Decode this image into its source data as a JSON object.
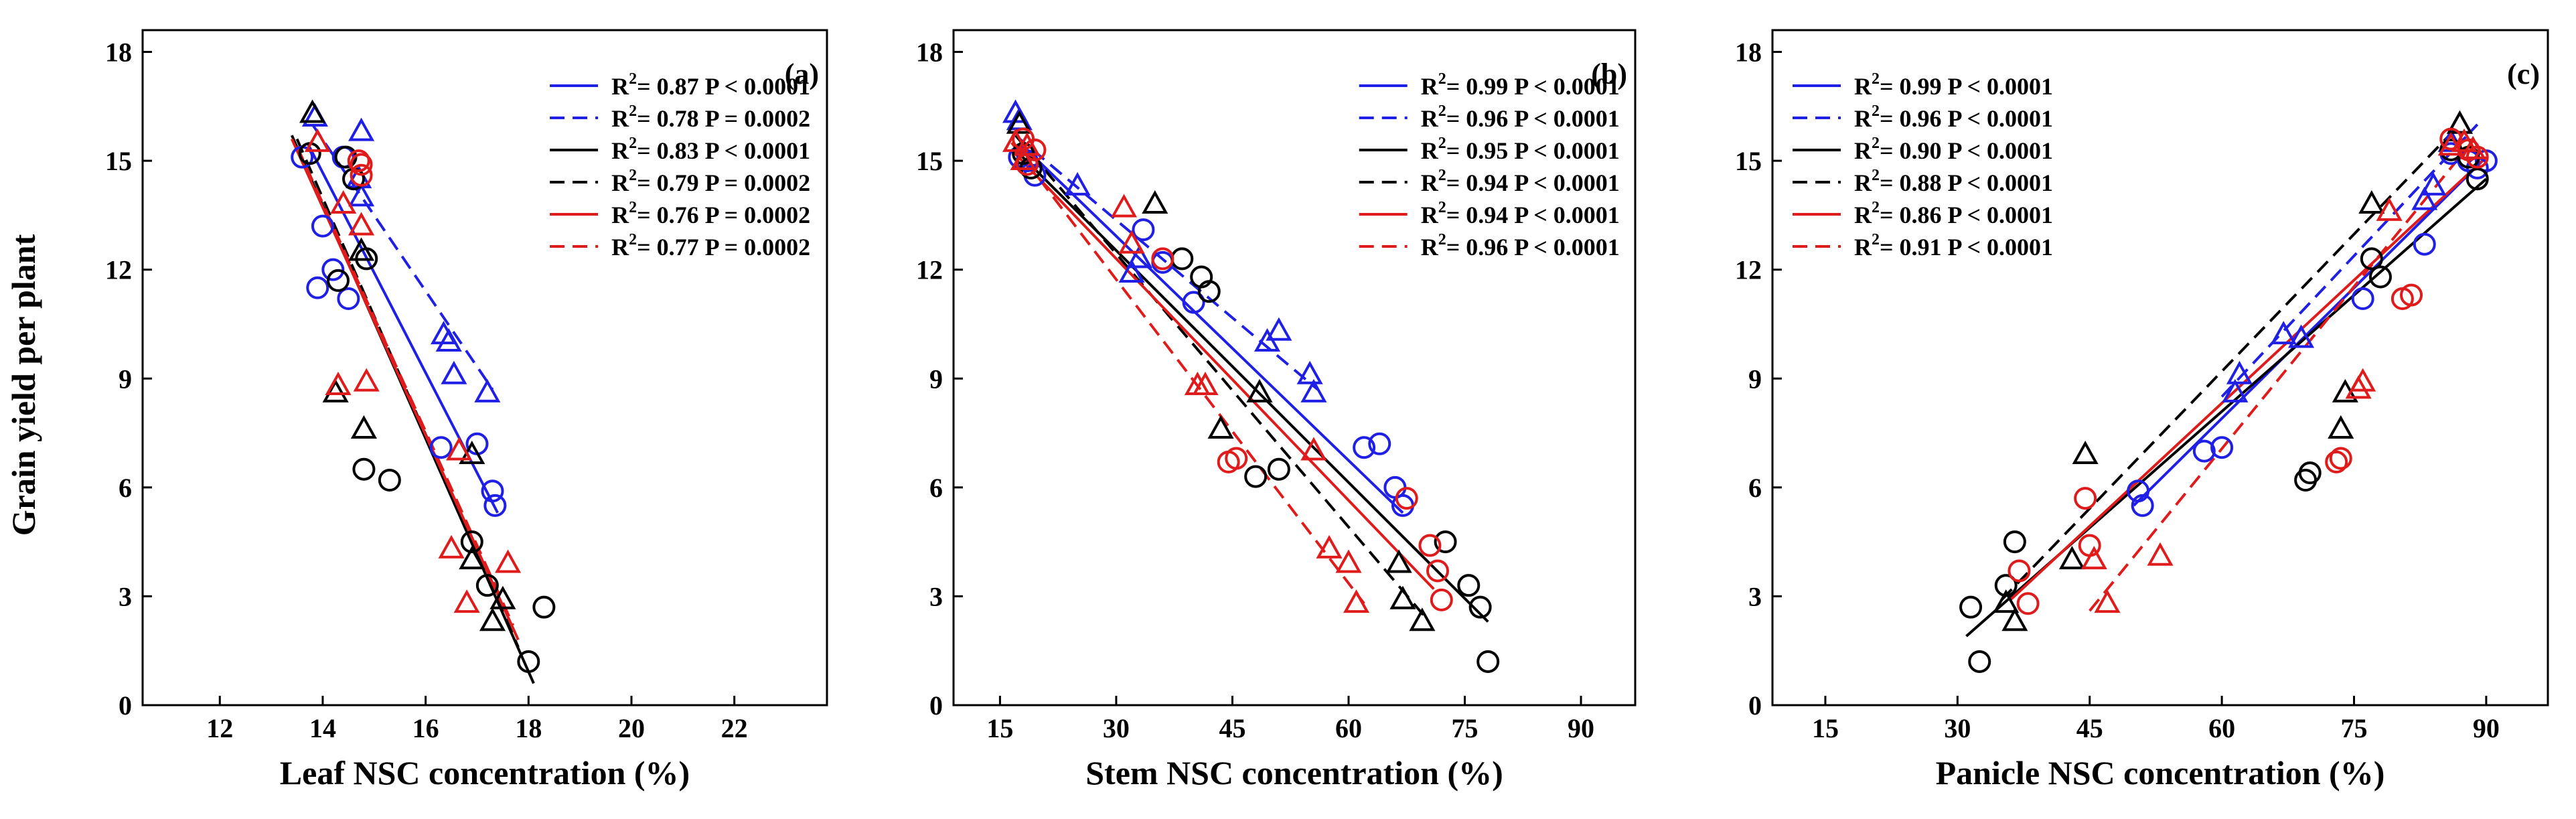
{
  "figure": {
    "ylabel": "Grain yield per plant",
    "colors": {
      "blue": "#1f1fe6",
      "black": "#000000",
      "red": "#e01b1b"
    }
  },
  "chart_data": [
    {
      "type": "scatter",
      "panel_label": "(a)",
      "xlabel": "Leaf NSC concentration (%)",
      "ylabel": "Grain yield per plant",
      "xlim": [
        10.5,
        23.8
      ],
      "ylim": [
        0,
        18.6
      ],
      "xticks": [
        12,
        14,
        16,
        18,
        20,
        22
      ],
      "yticks": [
        0,
        3,
        6,
        9,
        12,
        15,
        18
      ],
      "legend_position": "top-right",
      "series": [
        {
          "color": "blue",
          "marker": "circle",
          "dash": false,
          "legend_r2": "= 0.87",
          "legend_p": "P < 0.0001",
          "fit": [
            [
              13.7,
              15.5
            ],
            [
              17.4,
              5.3
            ]
          ],
          "points": [
            [
              13.6,
              15.1
            ],
            [
              14.0,
              13.2
            ],
            [
              13.9,
              11.5
            ],
            [
              14.5,
              11.2
            ],
            [
              14.4,
              15.1
            ],
            [
              14.2,
              12.0
            ],
            [
              16.3,
              7.1
            ],
            [
              17.0,
              7.2
            ],
            [
              17.3,
              5.9
            ],
            [
              17.35,
              5.5
            ]
          ]
        },
        {
          "color": "blue",
          "marker": "triangle",
          "dash": true,
          "legend_r2": "= 0.78",
          "legend_p": "P = 0.0002",
          "fit": [
            [
              13.8,
              16.0
            ],
            [
              17.3,
              8.7
            ]
          ],
          "points": [
            [
              13.85,
              16.2
            ],
            [
              14.75,
              15.8
            ],
            [
              14.7,
              14.5
            ],
            [
              14.75,
              14.0
            ],
            [
              16.35,
              10.2
            ],
            [
              16.45,
              10.0
            ],
            [
              16.55,
              9.1
            ],
            [
              17.2,
              8.6
            ]
          ]
        },
        {
          "color": "black",
          "marker": "circle",
          "dash": false,
          "legend_r2": "= 0.83",
          "legend_p": "P < 0.0001",
          "fit": [
            [
              13.4,
              15.7
            ],
            [
              18.1,
              0.6
            ]
          ],
          "points": [
            [
              13.75,
              15.2
            ],
            [
              14.45,
              15.1
            ],
            [
              14.6,
              14.5
            ],
            [
              14.85,
              12.3
            ],
            [
              14.3,
              11.7
            ],
            [
              14.8,
              6.5
            ],
            [
              15.3,
              6.2
            ],
            [
              16.9,
              4.5
            ],
            [
              17.2,
              3.3
            ],
            [
              18.3,
              2.7
            ],
            [
              18.0,
              1.2
            ]
          ]
        },
        {
          "color": "black",
          "marker": "triangle",
          "dash": true,
          "legend_r2": "= 0.79",
          "legend_p": "P = 0.0002",
          "fit": [
            [
              13.5,
              15.6
            ],
            [
              17.8,
              1.6
            ]
          ],
          "points": [
            [
              13.8,
              16.3
            ],
            [
              14.75,
              12.5
            ],
            [
              14.25,
              8.6
            ],
            [
              14.8,
              7.6
            ],
            [
              16.9,
              6.9
            ],
            [
              16.9,
              4.0
            ],
            [
              17.3,
              2.3
            ],
            [
              17.5,
              2.9
            ]
          ]
        },
        {
          "color": "red",
          "marker": "circle",
          "dash": false,
          "legend_r2": "= 0.76",
          "legend_p": "P = 0.0002",
          "fit": [
            [
              13.4,
              15.6
            ],
            [
              17.8,
              1.8
            ]
          ],
          "points": [
            [
              14.7,
              15.0
            ],
            [
              14.75,
              14.6
            ],
            [
              14.75,
              14.9
            ]
          ]
        },
        {
          "color": "red",
          "marker": "triangle",
          "dash": true,
          "legend_r2": "= 0.77",
          "legend_p": "P = 0.0002",
          "fit": [
            [
              13.5,
              15.4
            ],
            [
              17.7,
              2.2
            ]
          ],
          "points": [
            [
              13.9,
              15.5
            ],
            [
              14.4,
              13.8
            ],
            [
              14.75,
              13.2
            ],
            [
              14.3,
              8.8
            ],
            [
              14.85,
              8.9
            ],
            [
              16.5,
              4.3
            ],
            [
              16.65,
              7.0
            ],
            [
              16.8,
              2.8
            ],
            [
              17.6,
              3.9
            ]
          ]
        }
      ]
    },
    {
      "type": "scatter",
      "panel_label": "(b)",
      "xlabel": "Stem NSC concentration (%)",
      "ylabel": "",
      "xlim": [
        9,
        97
      ],
      "ylim": [
        0,
        18.6
      ],
      "xticks": [
        15,
        30,
        45,
        60,
        75,
        90
      ],
      "yticks": [
        0,
        3,
        6,
        9,
        12,
        15,
        18
      ],
      "legend_position": "top-right",
      "series": [
        {
          "color": "blue",
          "marker": "circle",
          "dash": false,
          "legend_r2": "= 0.99",
          "legend_p": "P < 0.0001",
          "fit": [
            [
              17.5,
              15.5
            ],
            [
              67,
              5.3
            ]
          ],
          "points": [
            [
              17.5,
              15.1
            ],
            [
              18.5,
              15.0
            ],
            [
              19.5,
              14.6
            ],
            [
              33.5,
              13.1
            ],
            [
              36,
              12.2
            ],
            [
              40,
              11.1
            ],
            [
              62,
              7.1
            ],
            [
              64,
              7.2
            ],
            [
              66,
              6.0
            ],
            [
              67,
              5.5
            ]
          ]
        },
        {
          "color": "blue",
          "marker": "triangle",
          "dash": true,
          "legend_r2": "= 0.96",
          "legend_p": "P < 0.0001",
          "fit": [
            [
              17,
              15.7
            ],
            [
              56,
              8.7
            ]
          ],
          "points": [
            [
              17,
              16.3
            ],
            [
              17.5,
              16.1
            ],
            [
              25,
              14.3
            ],
            [
              33,
              12.3
            ],
            [
              32,
              11.9
            ],
            [
              49.5,
              10.0
            ],
            [
              51,
              10.3
            ],
            [
              55,
              9.1
            ],
            [
              55.5,
              8.6
            ]
          ]
        },
        {
          "color": "black",
          "marker": "circle",
          "dash": false,
          "legend_r2": "= 0.95",
          "legend_p": "P < 0.0001",
          "fit": [
            [
              17,
              15.3
            ],
            [
              78,
              2.3
            ]
          ],
          "points": [
            [
              18,
              15.2
            ],
            [
              19,
              14.8
            ],
            [
              38.5,
              12.3
            ],
            [
              41,
              11.8
            ],
            [
              42,
              11.4
            ],
            [
              48,
              6.3
            ],
            [
              51,
              6.5
            ],
            [
              72.5,
              4.5
            ],
            [
              75.5,
              3.3
            ],
            [
              77,
              2.7
            ],
            [
              78,
              1.2
            ]
          ]
        },
        {
          "color": "black",
          "marker": "triangle",
          "dash": true,
          "legend_r2": "= 0.94",
          "legend_p": "P < 0.0001",
          "fit": [
            [
              17,
              15.7
            ],
            [
              70,
              2.4
            ]
          ],
          "points": [
            [
              17.5,
              16.0
            ],
            [
              35,
              13.8
            ],
            [
              43.5,
              7.6
            ],
            [
              48.5,
              8.6
            ],
            [
              66.5,
              3.9
            ],
            [
              67,
              2.9
            ],
            [
              69.5,
              2.3
            ]
          ]
        },
        {
          "color": "red",
          "marker": "circle",
          "dash": false,
          "legend_r2": "= 0.94",
          "legend_p": "P < 0.0001",
          "fit": [
            [
              16.5,
              15.3
            ],
            [
              71,
              3.2
            ]
          ],
          "points": [
            [
              18,
              15.6
            ],
            [
              19.5,
              15.3
            ],
            [
              18.5,
              14.9
            ],
            [
              36,
              12.3
            ],
            [
              44.5,
              6.7
            ],
            [
              45.5,
              6.8
            ],
            [
              67.5,
              5.7
            ],
            [
              70.5,
              4.4
            ],
            [
              71.5,
              3.7
            ],
            [
              72,
              2.9
            ]
          ]
        },
        {
          "color": "red",
          "marker": "triangle",
          "dash": true,
          "legend_r2": "= 0.96",
          "legend_p": "P < 0.0001",
          "fit": [
            [
              16.5,
              15.5
            ],
            [
              62,
              2.8
            ]
          ],
          "points": [
            [
              17,
              15.5
            ],
            [
              18.5,
              15.4
            ],
            [
              18,
              15.0
            ],
            [
              31,
              13.7
            ],
            [
              32,
              12.7
            ],
            [
              40.5,
              8.8
            ],
            [
              41.5,
              8.8
            ],
            [
              55.5,
              7.0
            ],
            [
              57.5,
              4.3
            ],
            [
              60,
              3.9
            ],
            [
              61,
              2.8
            ]
          ]
        }
      ]
    },
    {
      "type": "scatter",
      "panel_label": "(c)",
      "xlabel": "Panicle NSC concentration (%)",
      "ylabel": "",
      "xlim": [
        9,
        97
      ],
      "ylim": [
        0,
        18.6
      ],
      "xticks": [
        15,
        30,
        45,
        60,
        75,
        90
      ],
      "yticks": [
        0,
        3,
        6,
        9,
        12,
        15,
        18
      ],
      "legend_position": "top-left",
      "series": [
        {
          "color": "blue",
          "marker": "circle",
          "dash": false,
          "legend_r2": "= 0.99",
          "legend_p": "P < 0.0001",
          "fit": [
            [
              50,
              5.5
            ],
            [
              90,
              15.1
            ]
          ],
          "points": [
            [
              50.5,
              5.9
            ],
            [
              51,
              5.5
            ],
            [
              58,
              7.0
            ],
            [
              60,
              7.1
            ],
            [
              76,
              11.2
            ],
            [
              83,
              12.7
            ],
            [
              86,
              15.2
            ],
            [
              88,
              15.0
            ],
            [
              89,
              14.8
            ],
            [
              90,
              15.0
            ]
          ]
        },
        {
          "color": "blue",
          "marker": "triangle",
          "dash": true,
          "legend_r2": "= 0.96",
          "legend_p": "P < 0.0001",
          "fit": [
            [
              60,
              8.5
            ],
            [
              89,
              16.0
            ]
          ],
          "points": [
            [
              61.5,
              8.6
            ],
            [
              62,
              9.1
            ],
            [
              67,
              10.2
            ],
            [
              69,
              10.1
            ],
            [
              83,
              13.9
            ],
            [
              84,
              14.3
            ],
            [
              86,
              15.5
            ],
            [
              87,
              16.0
            ]
          ]
        },
        {
          "color": "black",
          "marker": "circle",
          "dash": false,
          "legend_r2": "= 0.90",
          "legend_p": "P < 0.0001",
          "fit": [
            [
              31,
              1.9
            ],
            [
              90,
              14.5
            ]
          ],
          "points": [
            [
              31.5,
              2.7
            ],
            [
              32.5,
              1.2
            ],
            [
              35.5,
              3.3
            ],
            [
              36.5,
              4.5
            ],
            [
              69.5,
              6.2
            ],
            [
              70,
              6.4
            ],
            [
              77,
              12.3
            ],
            [
              78,
              11.8
            ],
            [
              86,
              15.3
            ],
            [
              88,
              15.1
            ],
            [
              89,
              14.5
            ]
          ]
        },
        {
          "color": "black",
          "marker": "triangle",
          "dash": true,
          "legend_r2": "= 0.88",
          "legend_p": "P < 0.0001",
          "fit": [
            [
              35,
              2.9
            ],
            [
              87,
              16.0
            ]
          ],
          "points": [
            [
              35.5,
              2.8
            ],
            [
              36.5,
              2.3
            ],
            [
              43,
              4.0
            ],
            [
              44.5,
              6.9
            ],
            [
              73.5,
              7.6
            ],
            [
              74,
              8.6
            ],
            [
              77,
              13.8
            ],
            [
              87,
              16.0
            ]
          ]
        },
        {
          "color": "red",
          "marker": "circle",
          "dash": false,
          "legend_r2": "= 0.86",
          "legend_p": "P < 0.0001",
          "fit": [
            [
              36,
              2.9
            ],
            [
              90,
              15.1
            ]
          ],
          "points": [
            [
              37,
              3.7
            ],
            [
              38,
              2.8
            ],
            [
              44.5,
              5.7
            ],
            [
              45,
              4.4
            ],
            [
              73,
              6.7
            ],
            [
              73.5,
              6.8
            ],
            [
              80.5,
              11.2
            ],
            [
              81.5,
              11.3
            ],
            [
              86,
              15.6
            ],
            [
              88,
              15.3
            ],
            [
              89,
              15.1
            ]
          ]
        },
        {
          "color": "red",
          "marker": "triangle",
          "dash": true,
          "legend_r2": "= 0.91",
          "legend_p": "P < 0.0001",
          "fit": [
            [
              45,
              2.6
            ],
            [
              89,
              15.7
            ]
          ],
          "points": [
            [
              45.5,
              4.0
            ],
            [
              47,
              2.8
            ],
            [
              53,
              4.1
            ],
            [
              75.5,
              8.7
            ],
            [
              76,
              8.9
            ],
            [
              79,
              13.6
            ],
            [
              86,
              15.4
            ],
            [
              87.5,
              15.5
            ],
            [
              88.5,
              15.3
            ]
          ]
        }
      ]
    }
  ]
}
